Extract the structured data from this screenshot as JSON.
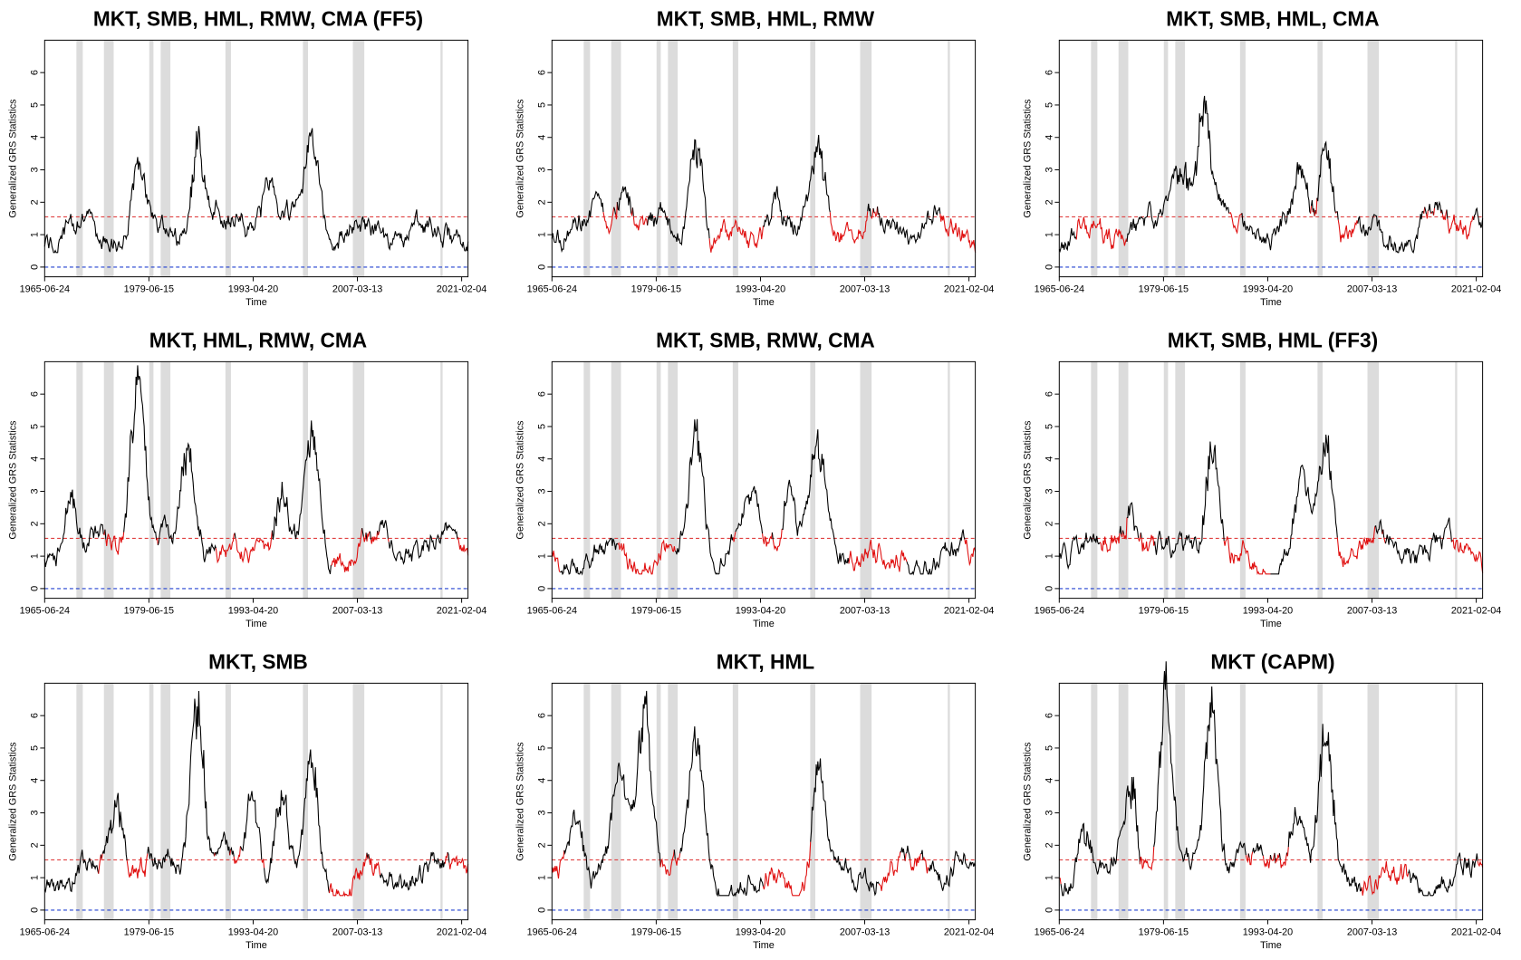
{
  "chart_data": [
    {
      "type": "line",
      "title": "MKT, SMB, HML, RMW, CMA (FF5)",
      "xlabel": "Time",
      "ylabel": "Generalized GRS Statistics",
      "x_ticks": [
        "1965-06-24",
        "1979-06-15",
        "1993-04-20",
        "2007-03-13",
        "2021-02-04"
      ],
      "y_ticks": [
        0,
        1,
        2,
        3,
        4,
        5,
        6
      ],
      "ylim": [
        -0.3,
        7.0
      ],
      "reference_lines": [
        {
          "y": 1.55,
          "color": "#e04040",
          "style": "dashed"
        },
        {
          "y": 0,
          "color": "#2040d0",
          "style": "dashed"
        }
      ],
      "seed": 11,
      "red_frac": 0.0,
      "peaks": [
        {
          "t": 0.36,
          "h": 3.9
        },
        {
          "t": 0.63,
          "h": 4.1
        },
        {
          "t": 0.22,
          "h": 2.8
        },
        {
          "t": 0.53,
          "h": 2.6
        }
      ]
    },
    {
      "type": "line",
      "title": "MKT, SMB, HML, RMW",
      "xlabel": "Time",
      "ylabel": "Generalized GRS Statistics",
      "x_ticks": [
        "1965-06-24",
        "1979-06-15",
        "1993-04-20",
        "2007-03-13",
        "2021-02-04"
      ],
      "y_ticks": [
        0,
        1,
        2,
        3,
        4,
        5,
        6
      ],
      "ylim": [
        -0.3,
        7.0
      ],
      "reference_lines": [
        {
          "y": 1.55,
          "color": "#e04040",
          "style": "dashed"
        },
        {
          "y": 0,
          "color": "#2040d0",
          "style": "dashed"
        }
      ],
      "seed": 23,
      "red_frac": 0.45,
      "peaks": [
        {
          "t": 0.34,
          "h": 4.1
        },
        {
          "t": 0.63,
          "h": 4.1
        },
        {
          "t": 0.17,
          "h": 2.9
        },
        {
          "t": 0.53,
          "h": 2.8
        }
      ]
    },
    {
      "type": "line",
      "title": "MKT, SMB, HML, CMA",
      "xlabel": "Time",
      "ylabel": "Generalized GRS Statistics",
      "x_ticks": [
        "1965-06-24",
        "1979-06-15",
        "1993-04-20",
        "2007-03-13",
        "2021-02-04"
      ],
      "y_ticks": [
        0,
        1,
        2,
        3,
        4,
        5,
        6
      ],
      "ylim": [
        -0.3,
        7.0
      ],
      "reference_lines": [
        {
          "y": 1.55,
          "color": "#e04040",
          "style": "dashed"
        },
        {
          "y": 0,
          "color": "#2040d0",
          "style": "dashed"
        }
      ],
      "seed": 37,
      "red_frac": 0.4,
      "peaks": [
        {
          "t": 0.34,
          "h": 4.8
        },
        {
          "t": 0.63,
          "h": 4.4
        },
        {
          "t": 0.29,
          "h": 3.0
        },
        {
          "t": 0.57,
          "h": 3.3
        }
      ]
    },
    {
      "type": "line",
      "title": "MKT, HML, RMW, CMA",
      "xlabel": "Time",
      "ylabel": "Generalized GRS Statistics",
      "x_ticks": [
        "1965-06-24",
        "1979-06-15",
        "1993-04-20",
        "2007-03-13",
        "2021-02-04"
      ],
      "y_ticks": [
        0,
        1,
        2,
        3,
        4,
        5,
        6
      ],
      "ylim": [
        -0.3,
        7.0
      ],
      "reference_lines": [
        {
          "y": 1.55,
          "color": "#e04040",
          "style": "dashed"
        },
        {
          "y": 0,
          "color": "#2040d0",
          "style": "dashed"
        }
      ],
      "seed": 41,
      "red_frac": 0.5,
      "peaks": [
        {
          "t": 0.22,
          "h": 6.6
        },
        {
          "t": 0.34,
          "h": 4.2
        },
        {
          "t": 0.63,
          "h": 4.9
        },
        {
          "t": 0.56,
          "h": 3.2
        },
        {
          "t": 0.06,
          "h": 3.0
        }
      ]
    },
    {
      "type": "line",
      "title": "MKT, SMB, RMW, CMA",
      "xlabel": "Time",
      "ylabel": "Generalized GRS Statistics",
      "x_ticks": [
        "1965-06-24",
        "1979-06-15",
        "1993-04-20",
        "2007-03-13",
        "2021-02-04"
      ],
      "y_ticks": [
        0,
        1,
        2,
        3,
        4,
        5,
        6
      ],
      "ylim": [
        -0.3,
        7.0
      ],
      "reference_lines": [
        {
          "y": 1.55,
          "color": "#e04040",
          "style": "dashed"
        },
        {
          "y": 0,
          "color": "#2040d0",
          "style": "dashed"
        }
      ],
      "seed": 53,
      "red_frac": 0.5,
      "peaks": [
        {
          "t": 0.34,
          "h": 4.9
        },
        {
          "t": 0.63,
          "h": 4.3
        },
        {
          "t": 0.56,
          "h": 3.4
        },
        {
          "t": 0.47,
          "h": 2.8
        }
      ]
    },
    {
      "type": "line",
      "title": "MKT, SMB, HML (FF3)",
      "xlabel": "Time",
      "ylabel": "Generalized GRS Statistics",
      "x_ticks": [
        "1965-06-24",
        "1979-06-15",
        "1993-04-20",
        "2007-03-13",
        "2021-02-04"
      ],
      "y_ticks": [
        0,
        1,
        2,
        3,
        4,
        5,
        6
      ],
      "ylim": [
        -0.3,
        7.0
      ],
      "reference_lines": [
        {
          "y": 1.55,
          "color": "#e04040",
          "style": "dashed"
        },
        {
          "y": 0,
          "color": "#2040d0",
          "style": "dashed"
        }
      ],
      "seed": 67,
      "red_frac": 0.45,
      "peaks": [
        {
          "t": 0.36,
          "h": 5.1
        },
        {
          "t": 0.63,
          "h": 4.4
        },
        {
          "t": 0.57,
          "h": 3.4
        },
        {
          "t": 0.17,
          "h": 3.0
        }
      ]
    },
    {
      "type": "line",
      "title": "MKT, SMB",
      "xlabel": "Time",
      "ylabel": "Generalized GRS Statistics",
      "x_ticks": [
        "1965-06-24",
        "1979-06-15",
        "1993-04-20",
        "2007-03-13",
        "2021-02-04"
      ],
      "y_ticks": [
        0,
        1,
        2,
        3,
        4,
        5,
        6
      ],
      "ylim": [
        -0.3,
        7.0
      ],
      "reference_lines": [
        {
          "y": 1.55,
          "color": "#e04040",
          "style": "dashed"
        },
        {
          "y": 0,
          "color": "#2040d0",
          "style": "dashed"
        }
      ],
      "seed": 79,
      "red_frac": 0.4,
      "peaks": [
        {
          "t": 0.36,
          "h": 6.1
        },
        {
          "t": 0.63,
          "h": 5.0
        },
        {
          "t": 0.56,
          "h": 3.8
        },
        {
          "t": 0.17,
          "h": 3.6
        },
        {
          "t": 0.49,
          "h": 3.3
        }
      ]
    },
    {
      "type": "line",
      "title": "MKT, HML",
      "xlabel": "Time",
      "ylabel": "Generalized GRS Statistics",
      "x_ticks": [
        "1965-06-24",
        "1979-06-15",
        "1993-04-20",
        "2007-03-13",
        "2021-02-04"
      ],
      "y_ticks": [
        0,
        1,
        2,
        3,
        4,
        5,
        6
      ],
      "ylim": [
        -0.3,
        7.0
      ],
      "reference_lines": [
        {
          "y": 1.55,
          "color": "#e04040",
          "style": "dashed"
        },
        {
          "y": 0,
          "color": "#2040d0",
          "style": "dashed"
        }
      ],
      "seed": 83,
      "red_frac": 0.4,
      "peaks": [
        {
          "t": 0.22,
          "h": 6.3
        },
        {
          "t": 0.34,
          "h": 4.9
        },
        {
          "t": 0.63,
          "h": 4.8
        },
        {
          "t": 0.16,
          "h": 3.9
        },
        {
          "t": 0.06,
          "h": 3.0
        }
      ]
    },
    {
      "type": "line",
      "title": "MKT (CAPM)",
      "xlabel": "Time",
      "ylabel": "Generalized GRS Statistics",
      "x_ticks": [
        "1965-06-24",
        "1979-06-15",
        "1993-04-20",
        "2007-03-13",
        "2021-02-04"
      ],
      "y_ticks": [
        0,
        1,
        2,
        3,
        4,
        5,
        6
      ],
      "ylim": [
        -0.3,
        7.0
      ],
      "reference_lines": [
        {
          "y": 1.55,
          "color": "#e04040",
          "style": "dashed"
        },
        {
          "y": 0,
          "color": "#2040d0",
          "style": "dashed"
        }
      ],
      "seed": 97,
      "red_frac": 0.35,
      "peaks": [
        {
          "t": 0.25,
          "h": 6.7
        },
        {
          "t": 0.36,
          "h": 6.1
        },
        {
          "t": 0.63,
          "h": 5.2
        },
        {
          "t": 0.17,
          "h": 4.4
        },
        {
          "t": 0.06,
          "h": 3.2
        },
        {
          "t": 0.56,
          "h": 3.2
        }
      ]
    }
  ],
  "recession_bands": [
    [
      0.075,
      0.09
    ],
    [
      0.14,
      0.163
    ],
    [
      0.247,
      0.257
    ],
    [
      0.274,
      0.297
    ],
    [
      0.427,
      0.44
    ],
    [
      0.61,
      0.622
    ],
    [
      0.728,
      0.755
    ],
    [
      0.935,
      0.94
    ]
  ],
  "colors": {
    "series": "#000000",
    "highlight": "#e01010",
    "band": "#dcdcdc",
    "upper_line": "#e04040",
    "zero_line": "#2040d0"
  }
}
